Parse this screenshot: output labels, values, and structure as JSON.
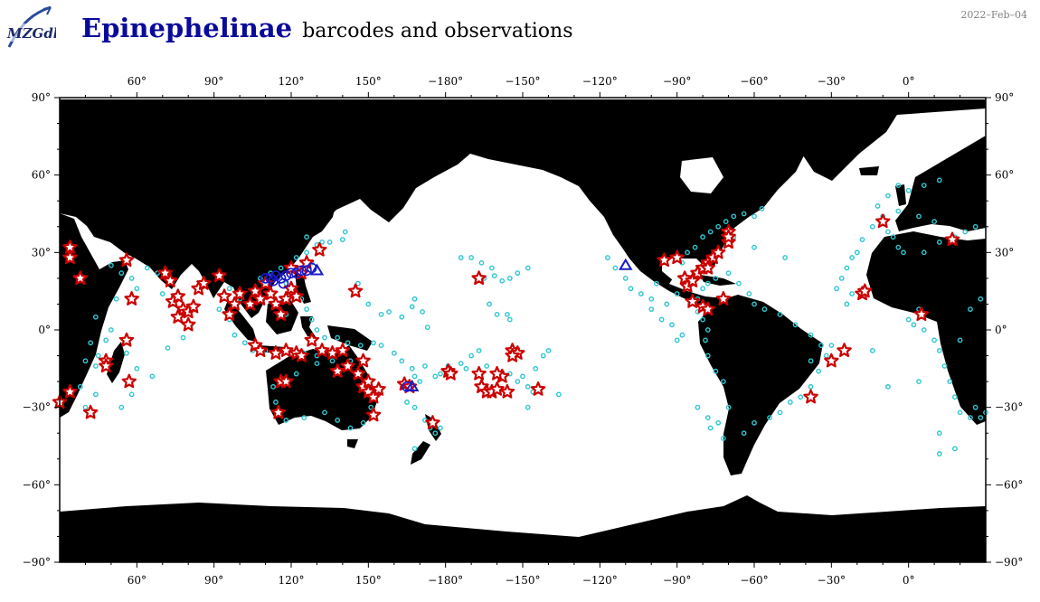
{
  "header": {
    "logo_text": "MZGdb",
    "title_main": "Epinephelinae",
    "title_sub": "barcodes and observations",
    "date": "2022–Feb–04"
  },
  "colors": {
    "title": "#0a0a9a",
    "land": "#000000",
    "ocean": "#ffffff",
    "observation": "#2ec7d0",
    "barcode_star_fill": "#ffffff",
    "barcode_star_stroke": "#cc0000",
    "barcode_circle": "#1a1acc",
    "barcode_triangle": "#1a1acc"
  },
  "map": {
    "projection": "equirectangular",
    "lon_range": [
      30,
      390
    ],
    "lat_range": [
      -90,
      90
    ],
    "top_lon_labels": [
      "60°",
      "90°",
      "120°",
      "150°",
      "−180°",
      "−150°",
      "−120°",
      "−90°",
      "−60°",
      "−30°",
      "0°"
    ],
    "bottom_lon_labels": [
      "60°",
      "90°",
      "120°",
      "150°",
      "−180°",
      "−150°",
      "−120°",
      "−90°",
      "−60°",
      "−30°",
      "0°"
    ],
    "label_lons": [
      60,
      90,
      120,
      150,
      180,
      210,
      240,
      270,
      300,
      330,
      360
    ],
    "left_lat_labels": [
      "90°",
      "60°",
      "30°",
      "0°",
      "−30°",
      "−60°",
      "−90°"
    ],
    "right_lat_labels": [
      "90°",
      "60°",
      "30°",
      "0°",
      "−30°",
      "−60°",
      "−90°"
    ],
    "label_lats": [
      90,
      60,
      30,
      0,
      -30,
      -60,
      -90
    ]
  }
}
